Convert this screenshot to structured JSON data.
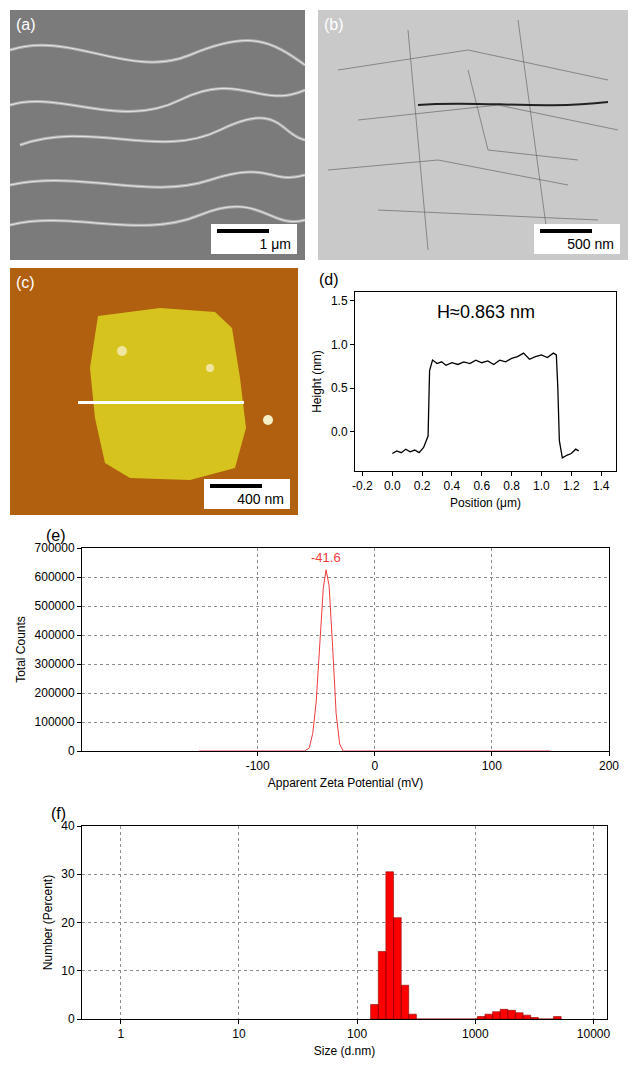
{
  "panels": [
    {
      "label": "(a)",
      "scale_bar": "1 μm"
    },
    {
      "label": "(b)",
      "scale_bar": "500 nm"
    },
    {
      "label": "(c)",
      "scale_bar": "400 nm"
    }
  ],
  "chart_data": [
    {
      "type": "line",
      "annotations": [
        "(d)",
        "H≈0.863 nm"
      ],
      "x_label": "Position (μm)",
      "y_label": "Height (nm)",
      "x": [
        0,
        0.03,
        0.06,
        0.09,
        0.12,
        0.15,
        0.18,
        0.21,
        0.24,
        0.25,
        0.27,
        0.3,
        0.33,
        0.36,
        0.4,
        0.44,
        0.48,
        0.52,
        0.56,
        0.6,
        0.64,
        0.68,
        0.72,
        0.76,
        0.8,
        0.84,
        0.88,
        0.92,
        0.96,
        1.0,
        1.04,
        1.08,
        1.1,
        1.11,
        1.12,
        1.14,
        1.17,
        1.2,
        1.23,
        1.25
      ],
      "values": [
        -0.25,
        -0.22,
        -0.24,
        -0.2,
        -0.23,
        -0.21,
        -0.24,
        -0.18,
        -0.05,
        0.7,
        0.82,
        0.78,
        0.8,
        0.76,
        0.79,
        0.77,
        0.8,
        0.78,
        0.82,
        0.79,
        0.81,
        0.77,
        0.82,
        0.8,
        0.84,
        0.86,
        0.9,
        0.83,
        0.86,
        0.88,
        0.85,
        0.9,
        0.88,
        0.5,
        -0.1,
        -0.3,
        -0.27,
        -0.25,
        -0.2,
        -0.22
      ],
      "color": "#000000",
      "xlim": [
        -0.25,
        1.5
      ],
      "xticks": [
        -0.2,
        {
          "value": 0,
          "label": "0.0"
        },
        0.2,
        0.4,
        0.6,
        0.8,
        {
          "value": 1,
          "label": "1.0"
        },
        1.2,
        1.4
      ],
      "ylim": [
        -0.45,
        1.6
      ],
      "yticks": [
        {
          "value": 0,
          "label": "0.0"
        },
        0.5,
        {
          "value": 1,
          "label": "1.0"
        },
        1.5
      ],
      "grid": false
    },
    {
      "type": "line",
      "annotations": [
        "(e)",
        "-41.6"
      ],
      "x_label": "Apparent Zeta Potential (mV)",
      "y_label": "Total Counts",
      "x": [
        -150,
        -60,
        -56,
        -53,
        -50,
        -47,
        -44,
        -41.6,
        -39,
        -36,
        -33,
        -30,
        -27,
        150
      ],
      "values": [
        0,
        0,
        10000,
        60000,
        170000,
        360000,
        560000,
        625000,
        570000,
        360000,
        130000,
        25000,
        0,
        0
      ],
      "color": "#f03c3c",
      "xlim": [
        -250,
        200
      ],
      "xticks": [
        -100,
        0,
        100,
        200
      ],
      "ylim": [
        0,
        700000
      ],
      "yticks": [
        0,
        100000,
        200000,
        300000,
        400000,
        500000,
        600000,
        700000
      ],
      "grid": true
    },
    {
      "type": "histogram",
      "annotations": [
        "(f)"
      ],
      "x_label": "Size (d.nm)",
      "y_label": "Number (Percent)",
      "bins": [
        130,
        151,
        175,
        203,
        236,
        273,
        317,
        368,
        427,
        495,
        574,
        666,
        773,
        896,
        1040,
        1206,
        1400,
        1623,
        1883,
        2184,
        2534,
        2939,
        3410,
        3955,
        4588,
        5322
      ],
      "values": [
        3,
        14,
        30.5,
        21,
        7,
        1,
        0,
        0,
        0,
        0,
        0,
        0,
        0,
        0,
        0.5,
        1,
        1.5,
        2,
        1.8,
        1.3,
        0.8,
        0.3,
        0,
        0,
        0.5
      ],
      "color": "#ff0000",
      "log": "x",
      "xlim": [
        0.47,
        13000
      ],
      "xticks": [
        1,
        10,
        100,
        1000,
        10000
      ],
      "ylim": [
        0,
        40
      ],
      "yticks": [
        0,
        10,
        20,
        30,
        40
      ],
      "grid": true
    }
  ]
}
